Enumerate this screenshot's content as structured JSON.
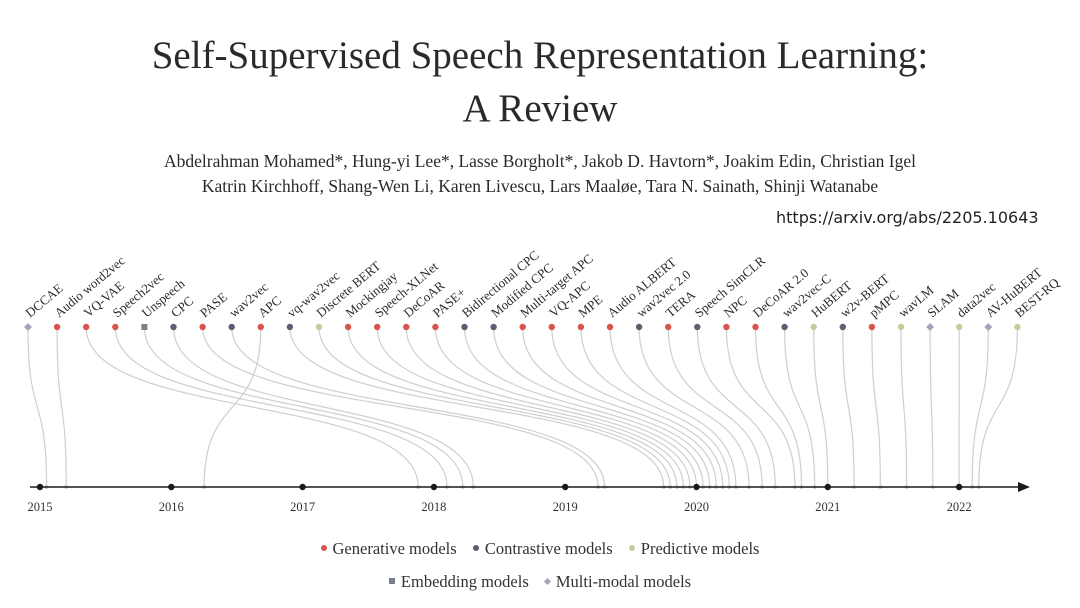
{
  "paper": {
    "title_line1": "Self-Supervised Speech Representation Learning:",
    "title_line2": "A Review",
    "authors_line1": "Abdelrahman Mohamed*, Hung-yi Lee*, Lasse Borgholt*, Jakob D. Havtorn*, Joakim Edin, Christian Igel",
    "authors_line2": "Katrin Kirchhoff, Shang-Wen Li, Karen Livescu, Lars Maaløe, Tara N. Sainath, Shinji Watanabe",
    "url": "https://arxiv.org/abs/2205.10643"
  },
  "colors": {
    "generative": "#d9534f",
    "contrastive": "#5b5f72",
    "predictive": "#c8cc9c",
    "embedding": "#7a7f8c",
    "multimodal": "#a3a6b6",
    "axis": "#1a1a1a",
    "curve": "#cfcfcf"
  },
  "timeline": {
    "years": [
      "2015",
      "2016",
      "2017",
      "2018",
      "2019",
      "2020",
      "2021",
      "2022"
    ],
    "models": [
      {
        "name": "DCCAE",
        "category": "multimodal",
        "date": 2015.05
      },
      {
        "name": "Audio word2vec",
        "category": "generative",
        "date": 2015.2
      },
      {
        "name": "VQ-VAE",
        "category": "generative",
        "date": 2017.88
      },
      {
        "name": "Speech2vec",
        "category": "generative",
        "date": 2018.1
      },
      {
        "name": "Unspeech",
        "category": "embedding",
        "date": 2018.22
      },
      {
        "name": "CPC",
        "category": "contrastive",
        "date": 2018.3
      },
      {
        "name": "PASE",
        "category": "generative",
        "date": 2019.25
      },
      {
        "name": "wav2vec",
        "category": "contrastive",
        "date": 2019.3
      },
      {
        "name": "APC",
        "category": "generative",
        "date": 2016.25
      },
      {
        "name": "vq-wav2vec",
        "category": "contrastive",
        "date": 2019.75
      },
      {
        "name": "Discrete BERT",
        "category": "predictive",
        "date": 2019.8
      },
      {
        "name": "Mockingjay",
        "category": "generative",
        "date": 2019.85
      },
      {
        "name": "Speech-XLNet",
        "category": "generative",
        "date": 2019.9
      },
      {
        "name": "DeCoAR",
        "category": "generative",
        "date": 2019.95
      },
      {
        "name": "PASE+",
        "category": "generative",
        "date": 2020.0
      },
      {
        "name": "Bidirectional CPC",
        "category": "contrastive",
        "date": 2020.05
      },
      {
        "name": "Modified CPC",
        "category": "contrastive",
        "date": 2020.1
      },
      {
        "name": "Multi-target APC",
        "category": "generative",
        "date": 2020.15
      },
      {
        "name": "VQ-APC",
        "category": "generative",
        "date": 2020.2
      },
      {
        "name": "MPE",
        "category": "generative",
        "date": 2020.25
      },
      {
        "name": "Audio ALBERT",
        "category": "generative",
        "date": 2020.3
      },
      {
        "name": "wav2vec 2.0",
        "category": "contrastive",
        "date": 2020.4
      },
      {
        "name": "TERA",
        "category": "generative",
        "date": 2020.5
      },
      {
        "name": "Speech SimCLR",
        "category": "contrastive",
        "date": 2020.6
      },
      {
        "name": "NPC",
        "category": "generative",
        "date": 2020.75
      },
      {
        "name": "DeCoAR 2.0",
        "category": "generative",
        "date": 2020.8
      },
      {
        "name": "wav2vec-C",
        "category": "contrastive",
        "date": 2020.9
      },
      {
        "name": "HuBERT",
        "category": "predictive",
        "date": 2021.0
      },
      {
        "name": "w2v-BERT",
        "category": "contrastive",
        "date": 2021.2
      },
      {
        "name": "pMPC",
        "category": "generative",
        "date": 2021.4
      },
      {
        "name": "wavLM",
        "category": "predictive",
        "date": 2021.6
      },
      {
        "name": "SLAM",
        "category": "multimodal",
        "date": 2021.8
      },
      {
        "name": "data2vec",
        "category": "predictive",
        "date": 2022.0
      },
      {
        "name": "AV-HuBERT",
        "category": "multimodal",
        "date": 2022.1
      },
      {
        "name": "BEST-RQ",
        "category": "predictive",
        "date": 2022.15
      }
    ]
  },
  "legend": {
    "generative": "Generative models",
    "contrastive": "Contrastive models",
    "predictive": "Predictive models",
    "embedding": "Embedding models",
    "multimodal": "Multi-modal models"
  }
}
